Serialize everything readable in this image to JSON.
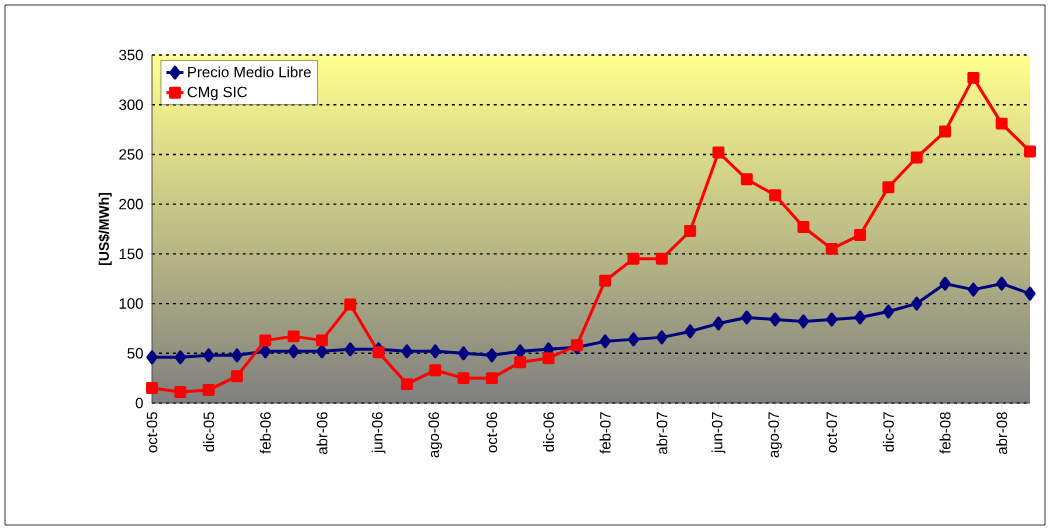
{
  "chart_data": {
    "type": "line",
    "ylabel": "[US$/MWh]",
    "categories": [
      "oct-05",
      null,
      "dic-05",
      null,
      "feb-06",
      null,
      "abr-06",
      null,
      "jun-06",
      null,
      "ago-06",
      null,
      "oct-06",
      null,
      "dic-06",
      null,
      "feb-07",
      null,
      "abr-07",
      null,
      "jun-07",
      null,
      "ago-07",
      null,
      "oct-07",
      null,
      "dic-07",
      null,
      "feb-08",
      null,
      "abr-08",
      null
    ],
    "series": [
      {
        "name": "Precio Medio Libre",
        "color": "#000080",
        "marker": "diamond",
        "values": [
          46,
          46,
          48,
          48,
          52,
          52,
          52,
          54,
          54,
          52,
          52,
          50,
          48,
          52,
          54,
          56,
          62,
          64,
          66,
          72,
          80,
          86,
          84,
          82,
          84,
          86,
          92,
          100,
          120,
          114,
          120,
          110
        ]
      },
      {
        "name": "CMg SIC",
        "color": "#ff0000",
        "marker": "square",
        "values": [
          15,
          11,
          13,
          27,
          63,
          67,
          63,
          99,
          51,
          19,
          33,
          25,
          25,
          41,
          45,
          58,
          123,
          145,
          145,
          173,
          252,
          225,
          209,
          177,
          155,
          169,
          217,
          247,
          273,
          327,
          281,
          253
        ]
      }
    ],
    "ylim": [
      0,
      350
    ],
    "yticks": [
      0,
      50,
      100,
      150,
      200,
      250,
      300,
      350
    ],
    "grid": "y",
    "legend": "top left",
    "line_style": "solid"
  }
}
